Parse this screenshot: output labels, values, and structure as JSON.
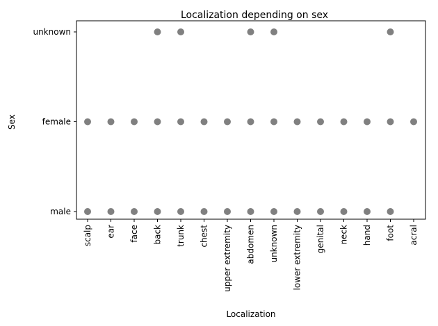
{
  "chart_data": {
    "type": "scatter",
    "title": "Localization depending on sex",
    "xlabel": "Localization",
    "ylabel": "Sex",
    "x_categories": [
      "scalp",
      "ear",
      "face",
      "back",
      "trunk",
      "chest",
      "upper extremity",
      "abdomen",
      "unknown",
      "lower extremity",
      "genital",
      "neck",
      "hand",
      "foot",
      "acral"
    ],
    "y_categories": [
      "male",
      "female",
      "unknown"
    ],
    "marker_color": "#808080",
    "grid": false,
    "points": [
      {
        "x": "scalp",
        "y": "male"
      },
      {
        "x": "ear",
        "y": "male"
      },
      {
        "x": "face",
        "y": "male"
      },
      {
        "x": "back",
        "y": "male"
      },
      {
        "x": "trunk",
        "y": "male"
      },
      {
        "x": "chest",
        "y": "male"
      },
      {
        "x": "upper extremity",
        "y": "male"
      },
      {
        "x": "abdomen",
        "y": "male"
      },
      {
        "x": "unknown",
        "y": "male"
      },
      {
        "x": "lower extremity",
        "y": "male"
      },
      {
        "x": "genital",
        "y": "male"
      },
      {
        "x": "neck",
        "y": "male"
      },
      {
        "x": "hand",
        "y": "male"
      },
      {
        "x": "foot",
        "y": "male"
      },
      {
        "x": "scalp",
        "y": "female"
      },
      {
        "x": "ear",
        "y": "female"
      },
      {
        "x": "face",
        "y": "female"
      },
      {
        "x": "back",
        "y": "female"
      },
      {
        "x": "trunk",
        "y": "female"
      },
      {
        "x": "chest",
        "y": "female"
      },
      {
        "x": "upper extremity",
        "y": "female"
      },
      {
        "x": "abdomen",
        "y": "female"
      },
      {
        "x": "unknown",
        "y": "female"
      },
      {
        "x": "lower extremity",
        "y": "female"
      },
      {
        "x": "genital",
        "y": "female"
      },
      {
        "x": "neck",
        "y": "female"
      },
      {
        "x": "hand",
        "y": "female"
      },
      {
        "x": "foot",
        "y": "female"
      },
      {
        "x": "acral",
        "y": "female"
      },
      {
        "x": "back",
        "y": "unknown"
      },
      {
        "x": "trunk",
        "y": "unknown"
      },
      {
        "x": "abdomen",
        "y": "unknown"
      },
      {
        "x": "unknown",
        "y": "unknown"
      },
      {
        "x": "foot",
        "y": "unknown"
      }
    ]
  }
}
